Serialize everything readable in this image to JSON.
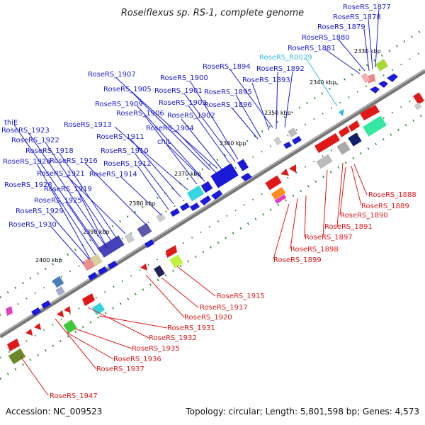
{
  "title": "Roseiflexus sp. RS-1, complete genome",
  "footer": {
    "accession": "Accession: NC_009523",
    "summary": "Topology: circular; Length: 5,801,598 bp; Genes: 4,573"
  },
  "colors": {
    "forward_label": "#1a1ad8",
    "reverse_label": "#e01818",
    "rna_label": "#33bbdd",
    "backbone": "#888888",
    "tick": "#2a8a2a"
  },
  "kbp_ticks": [
    "2330 kbp",
    "2340 kbp",
    "2350 kbp",
    "2360 kbp",
    "2370 kbp",
    "2380 kbp",
    "2390 kbp",
    "2400 kbp"
  ],
  "labels_top": [
    "RoseRS_1877",
    "RoseRS_1878",
    "RoseRS_1879",
    "RoseRS_1880",
    "RoseRS_1881",
    "RoseRS_R0029",
    "RoseRS_1894",
    "RoseRS_1892",
    "RoseRS_1893",
    "RoseRS_1907",
    "RoseRS_1900",
    "RoseRS_1905",
    "RoseRS_1901",
    "RoseRS_1895",
    "RoseRS_1909",
    "RoseRS_1903",
    "RoseRS_1896",
    "RoseRS_1906",
    "RoseRS_1902",
    "RoseRS_1913",
    "RoseRS_1904",
    "thiE",
    "RoseRS_1911",
    "chlL",
    "RoseRS_1923",
    "RoseRS_1910",
    "RoseRS_1922",
    "RoseRS_1912",
    "RoseRS_1918",
    "RoseRS_1916",
    "RoseRS_1926",
    "RoseRS_1921",
    "RoseRS_1914",
    "RoseRS_1928",
    "RoseRS_1919",
    "RoseRS_1925",
    "RoseRS_1929",
    "RoseRS_1930"
  ],
  "labels_bottom": [
    "RoseRS_1888",
    "RoseRS_1889",
    "RoseRS_1890",
    "RoseRS_1891",
    "RoseRS_1897",
    "RoseRS_1898",
    "RoseRS_1899",
    "RoseRS_1915",
    "RoseRS_1917",
    "RoseRS_1920",
    "RoseRS_1931",
    "RoseRS_1932",
    "RoseRS_1935",
    "RoseRS_1936",
    "RoseRS_1937",
    "RoseRS_1947"
  ]
}
